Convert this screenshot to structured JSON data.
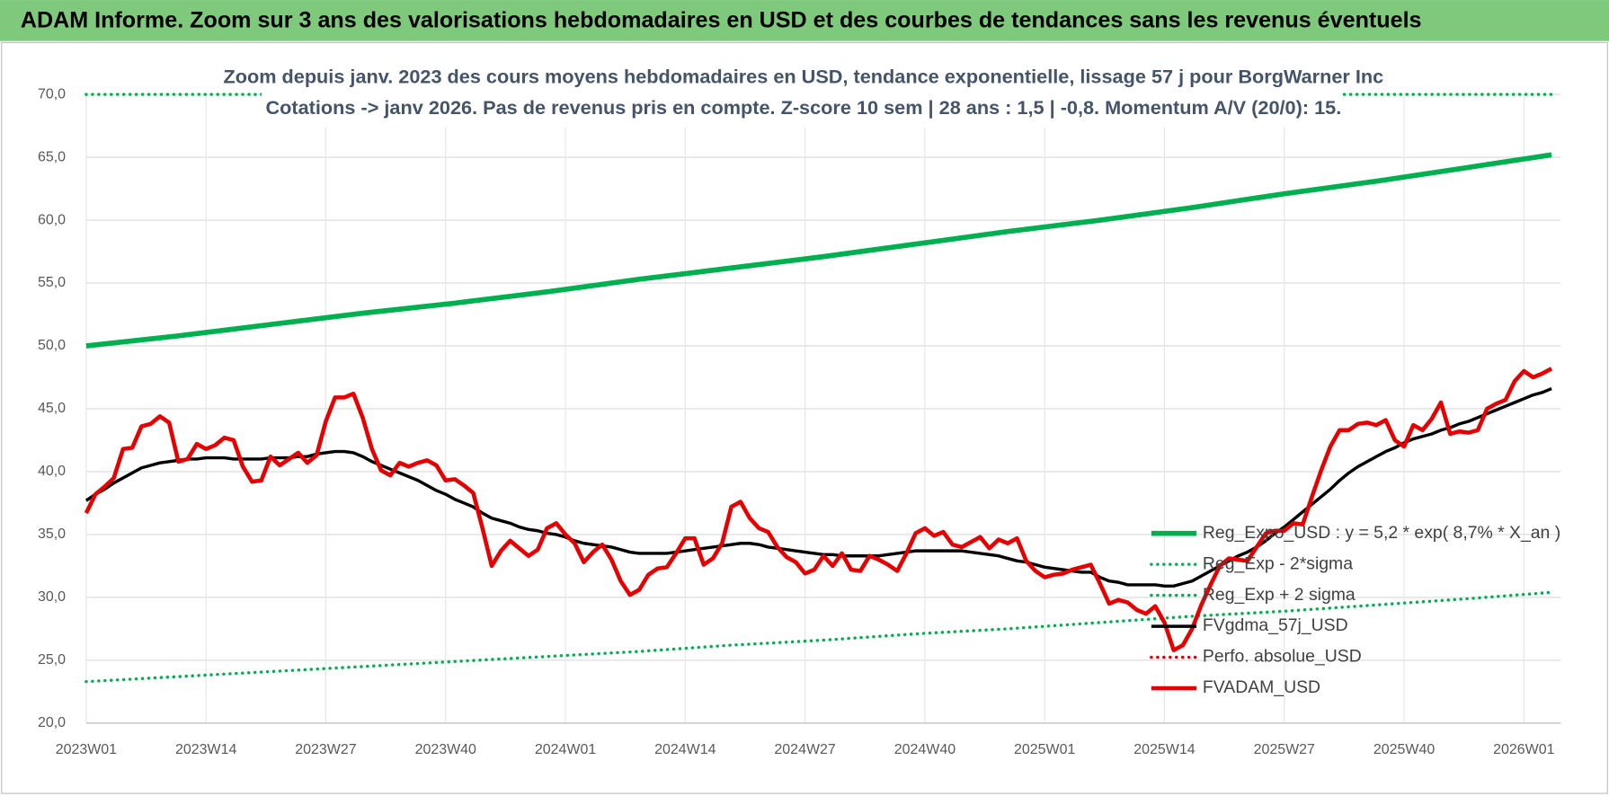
{
  "header": {
    "title": "ADAM Informe. Zoom sur 3 ans des valorisations hebdomadaires en USD et des courbes de tendances sans les revenus éventuels"
  },
  "chart_data": {
    "type": "line",
    "title": "Zoom depuis janv. 2023 des cours moyens hebdomadaires en USD, tendance exponentielle, lissage 57 j pour BorgWarner Inc",
    "subtitle": "Cotations -> janv 2026. Pas de revenus pris en compte. Z-score 10 sem | 28 ans : 1,5 | -0,8. Momentum A/V (20/0): 15.",
    "xlim": [
      0,
      160
    ],
    "xticks": [
      {
        "value": 0,
        "label": "2023W01"
      },
      {
        "value": 13,
        "label": "2023W14"
      },
      {
        "value": 26,
        "label": "2023W27"
      },
      {
        "value": 39,
        "label": "2023W40"
      },
      {
        "value": 52,
        "label": "2024W01"
      },
      {
        "value": 65,
        "label": "2024W14"
      },
      {
        "value": 78,
        "label": "2024W27"
      },
      {
        "value": 91,
        "label": "2024W40"
      },
      {
        "value": 104,
        "label": "2025W01"
      },
      {
        "value": 117,
        "label": "2025W14"
      },
      {
        "value": 130,
        "label": "2025W27"
      },
      {
        "value": 143,
        "label": "2025W40"
      },
      {
        "value": 156,
        "label": "2026W01"
      }
    ],
    "ylim": [
      20,
      70
    ],
    "yticks": [
      {
        "value": 20,
        "label": "20,0"
      },
      {
        "value": 25,
        "label": "25,0"
      },
      {
        "value": 30,
        "label": "30,0"
      },
      {
        "value": 35,
        "label": "35,0"
      },
      {
        "value": 40,
        "label": "40,0"
      },
      {
        "value": 45,
        "label": "45,0"
      },
      {
        "value": 50,
        "label": "50,0"
      },
      {
        "value": 55,
        "label": "55,0"
      },
      {
        "value": 60,
        "label": "60,0"
      },
      {
        "value": 65,
        "label": "65,0"
      },
      {
        "value": 70,
        "label": "70,0"
      }
    ],
    "grid": true,
    "legend": "right",
    "x": [
      0,
      1,
      2,
      3,
      4,
      5,
      6,
      7,
      8,
      9,
      10,
      11,
      12,
      13,
      14,
      15,
      16,
      17,
      18,
      19,
      20,
      21,
      22,
      23,
      24,
      25,
      26,
      27,
      28,
      29,
      30,
      31,
      32,
      33,
      34,
      35,
      36,
      37,
      38,
      39,
      40,
      41,
      42,
      43,
      44,
      45,
      46,
      47,
      48,
      49,
      50,
      51,
      52,
      53,
      54,
      55,
      56,
      57,
      58,
      59,
      60,
      61,
      62,
      63,
      64,
      65,
      66,
      67,
      68,
      69,
      70,
      71,
      72,
      73,
      74,
      75,
      76,
      77,
      78,
      79,
      80,
      81,
      82,
      83,
      84,
      85,
      86,
      87,
      88,
      89,
      90,
      91,
      92,
      93,
      94,
      95,
      96,
      97,
      98,
      99,
      100,
      101,
      102,
      103,
      104,
      105,
      106,
      107,
      108,
      109,
      110,
      111,
      112,
      113,
      114,
      115,
      116,
      117,
      118,
      119,
      120,
      121,
      122,
      123,
      124,
      125,
      126,
      127,
      128,
      129,
      130,
      131,
      132,
      133,
      134,
      135,
      136,
      137,
      138,
      139,
      140,
      141,
      142,
      143,
      144,
      145,
      146,
      147,
      148,
      149,
      150,
      151,
      152,
      153,
      154,
      155,
      156,
      157,
      158,
      159
    ],
    "series": [
      {
        "name": "Reg_Expo_USD : y = 5,2 * exp( 8,7% * X_an )",
        "color": "#00b050",
        "style": "solid",
        "width": 5,
        "x": [
          0,
          10,
          20,
          30,
          40,
          50,
          60,
          70,
          80,
          90,
          100,
          110,
          120,
          130,
          140,
          150,
          159
        ],
        "values": [
          50.0,
          50.8,
          51.7,
          52.6,
          53.4,
          54.3,
          55.3,
          56.2,
          57.1,
          58.1,
          59.1,
          60.0,
          61.0,
          62.1,
          63.1,
          64.2,
          65.2
        ]
      },
      {
        "name": "Reg_Exp - 2*sigma",
        "color": "#00b050",
        "style": "dotted",
        "width": 3,
        "x": [
          0,
          10,
          20,
          30,
          40,
          50,
          60,
          70,
          80,
          90,
          100,
          110,
          120,
          130,
          140,
          150,
          159
        ],
        "values": [
          23.3,
          23.7,
          24.1,
          24.5,
          24.9,
          25.3,
          25.7,
          26.2,
          26.6,
          27.1,
          27.5,
          28.0,
          28.5,
          28.9,
          29.4,
          29.9,
          30.4
        ]
      },
      {
        "name": "Reg_Exp + 2 sigma",
        "color": "#00b050",
        "style": "dotted",
        "width": 3,
        "x": [
          0,
          159
        ],
        "values": [
          70,
          70
        ]
      },
      {
        "name": "FVgdma_57j_USD",
        "color": "#000000",
        "style": "solid",
        "width": 3,
        "values": [
          37.7,
          38.2,
          38.6,
          39.1,
          39.5,
          39.9,
          40.3,
          40.5,
          40.7,
          40.8,
          40.9,
          41.0,
          41.0,
          41.1,
          41.1,
          41.1,
          41.0,
          41.0,
          41.0,
          41.0,
          41.1,
          41.1,
          41.1,
          41.2,
          41.2,
          41.4,
          41.5,
          41.6,
          41.6,
          41.5,
          41.2,
          40.8,
          40.5,
          40.2,
          39.9,
          39.6,
          39.3,
          38.9,
          38.5,
          38.2,
          37.8,
          37.5,
          37.2,
          36.7,
          36.3,
          36.1,
          35.9,
          35.6,
          35.4,
          35.3,
          35.1,
          35.0,
          34.8,
          34.5,
          34.3,
          34.2,
          34.1,
          34.0,
          33.8,
          33.6,
          33.5,
          33.5,
          33.5,
          33.5,
          33.6,
          33.7,
          33.8,
          33.9,
          34.0,
          34.1,
          34.2,
          34.3,
          34.3,
          34.2,
          34.0,
          33.9,
          33.8,
          33.7,
          33.6,
          33.5,
          33.4,
          33.4,
          33.3,
          33.3,
          33.3,
          33.3,
          33.3,
          33.4,
          33.5,
          33.6,
          33.7,
          33.7,
          33.7,
          33.7,
          33.7,
          33.7,
          33.6,
          33.5,
          33.4,
          33.3,
          33.1,
          32.9,
          32.8,
          32.6,
          32.4,
          32.3,
          32.2,
          32.1,
          32.0,
          32.0,
          31.6,
          31.3,
          31.2,
          31.0,
          31.0,
          31.0,
          31.0,
          30.9,
          30.9,
          31.1,
          31.3,
          31.7,
          32.1,
          32.5,
          32.9,
          33.3,
          33.6,
          34.0,
          34.5,
          35.1,
          35.6,
          36.2,
          36.8,
          37.4,
          38.0,
          38.6,
          39.3,
          39.9,
          40.4,
          40.8,
          41.2,
          41.6,
          41.9,
          42.3,
          42.6,
          42.8,
          43.0,
          43.3,
          43.5,
          43.8,
          44.0,
          44.3,
          44.6,
          44.9,
          45.2,
          45.5,
          45.8,
          46.1,
          46.3,
          46.6
        ]
      },
      {
        "name": "Perfo. absolue_USD",
        "color": "#e00000",
        "style": "dotted",
        "width": 3
      },
      {
        "name": "FVADAM_USD",
        "color": "#e60000",
        "style": "solid",
        "width": 4,
        "values": [
          36.7,
          38.2,
          38.8,
          39.5,
          41.8,
          41.9,
          43.6,
          43.8,
          44.4,
          43.9,
          40.8,
          41.0,
          42.2,
          41.8,
          42.1,
          42.7,
          42.5,
          40.4,
          39.2,
          39.3,
          41.2,
          40.5,
          41.0,
          41.5,
          40.7,
          41.3,
          44.0,
          45.9,
          45.9,
          46.2,
          44.3,
          41.8,
          40.1,
          39.7,
          40.7,
          40.4,
          40.7,
          40.9,
          40.5,
          39.3,
          39.4,
          38.9,
          38.3,
          35.5,
          32.5,
          33.7,
          34.5,
          33.9,
          33.3,
          33.8,
          35.5,
          35.9,
          35.0,
          34.3,
          32.8,
          33.6,
          34.2,
          33.0,
          31.3,
          30.2,
          30.6,
          31.8,
          32.3,
          32.4,
          33.5,
          34.7,
          34.7,
          32.6,
          33.1,
          34.3,
          37.2,
          37.6,
          36.3,
          35.5,
          35.2,
          34.0,
          33.2,
          32.8,
          31.9,
          32.2,
          33.3,
          32.5,
          33.5,
          32.2,
          32.1,
          33.3,
          33.0,
          32.6,
          32.1,
          33.5,
          35.1,
          35.5,
          34.9,
          35.2,
          34.2,
          34.0,
          34.4,
          34.8,
          33.9,
          34.6,
          34.3,
          34.7,
          32.9,
          32.1,
          31.6,
          31.8,
          31.9,
          32.2,
          32.4,
          32.6,
          31.1,
          29.5,
          29.8,
          29.6,
          29.0,
          28.7,
          29.3,
          28.0,
          25.8,
          26.2,
          27.5,
          29.4,
          31.0,
          32.5,
          33.1,
          33.0,
          32.9,
          34.0,
          35.1,
          35.3,
          35.3,
          35.9,
          35.8,
          38.0,
          40.1,
          42.0,
          43.3,
          43.3,
          43.8,
          43.9,
          43.7,
          44.1,
          42.5,
          42.0,
          43.7,
          43.3,
          44.2,
          45.5,
          43.0,
          43.2,
          43.1,
          43.3,
          45.0,
          45.4,
          45.7,
          47.2,
          48.0,
          47.5,
          47.8,
          48.2
        ]
      }
    ]
  }
}
